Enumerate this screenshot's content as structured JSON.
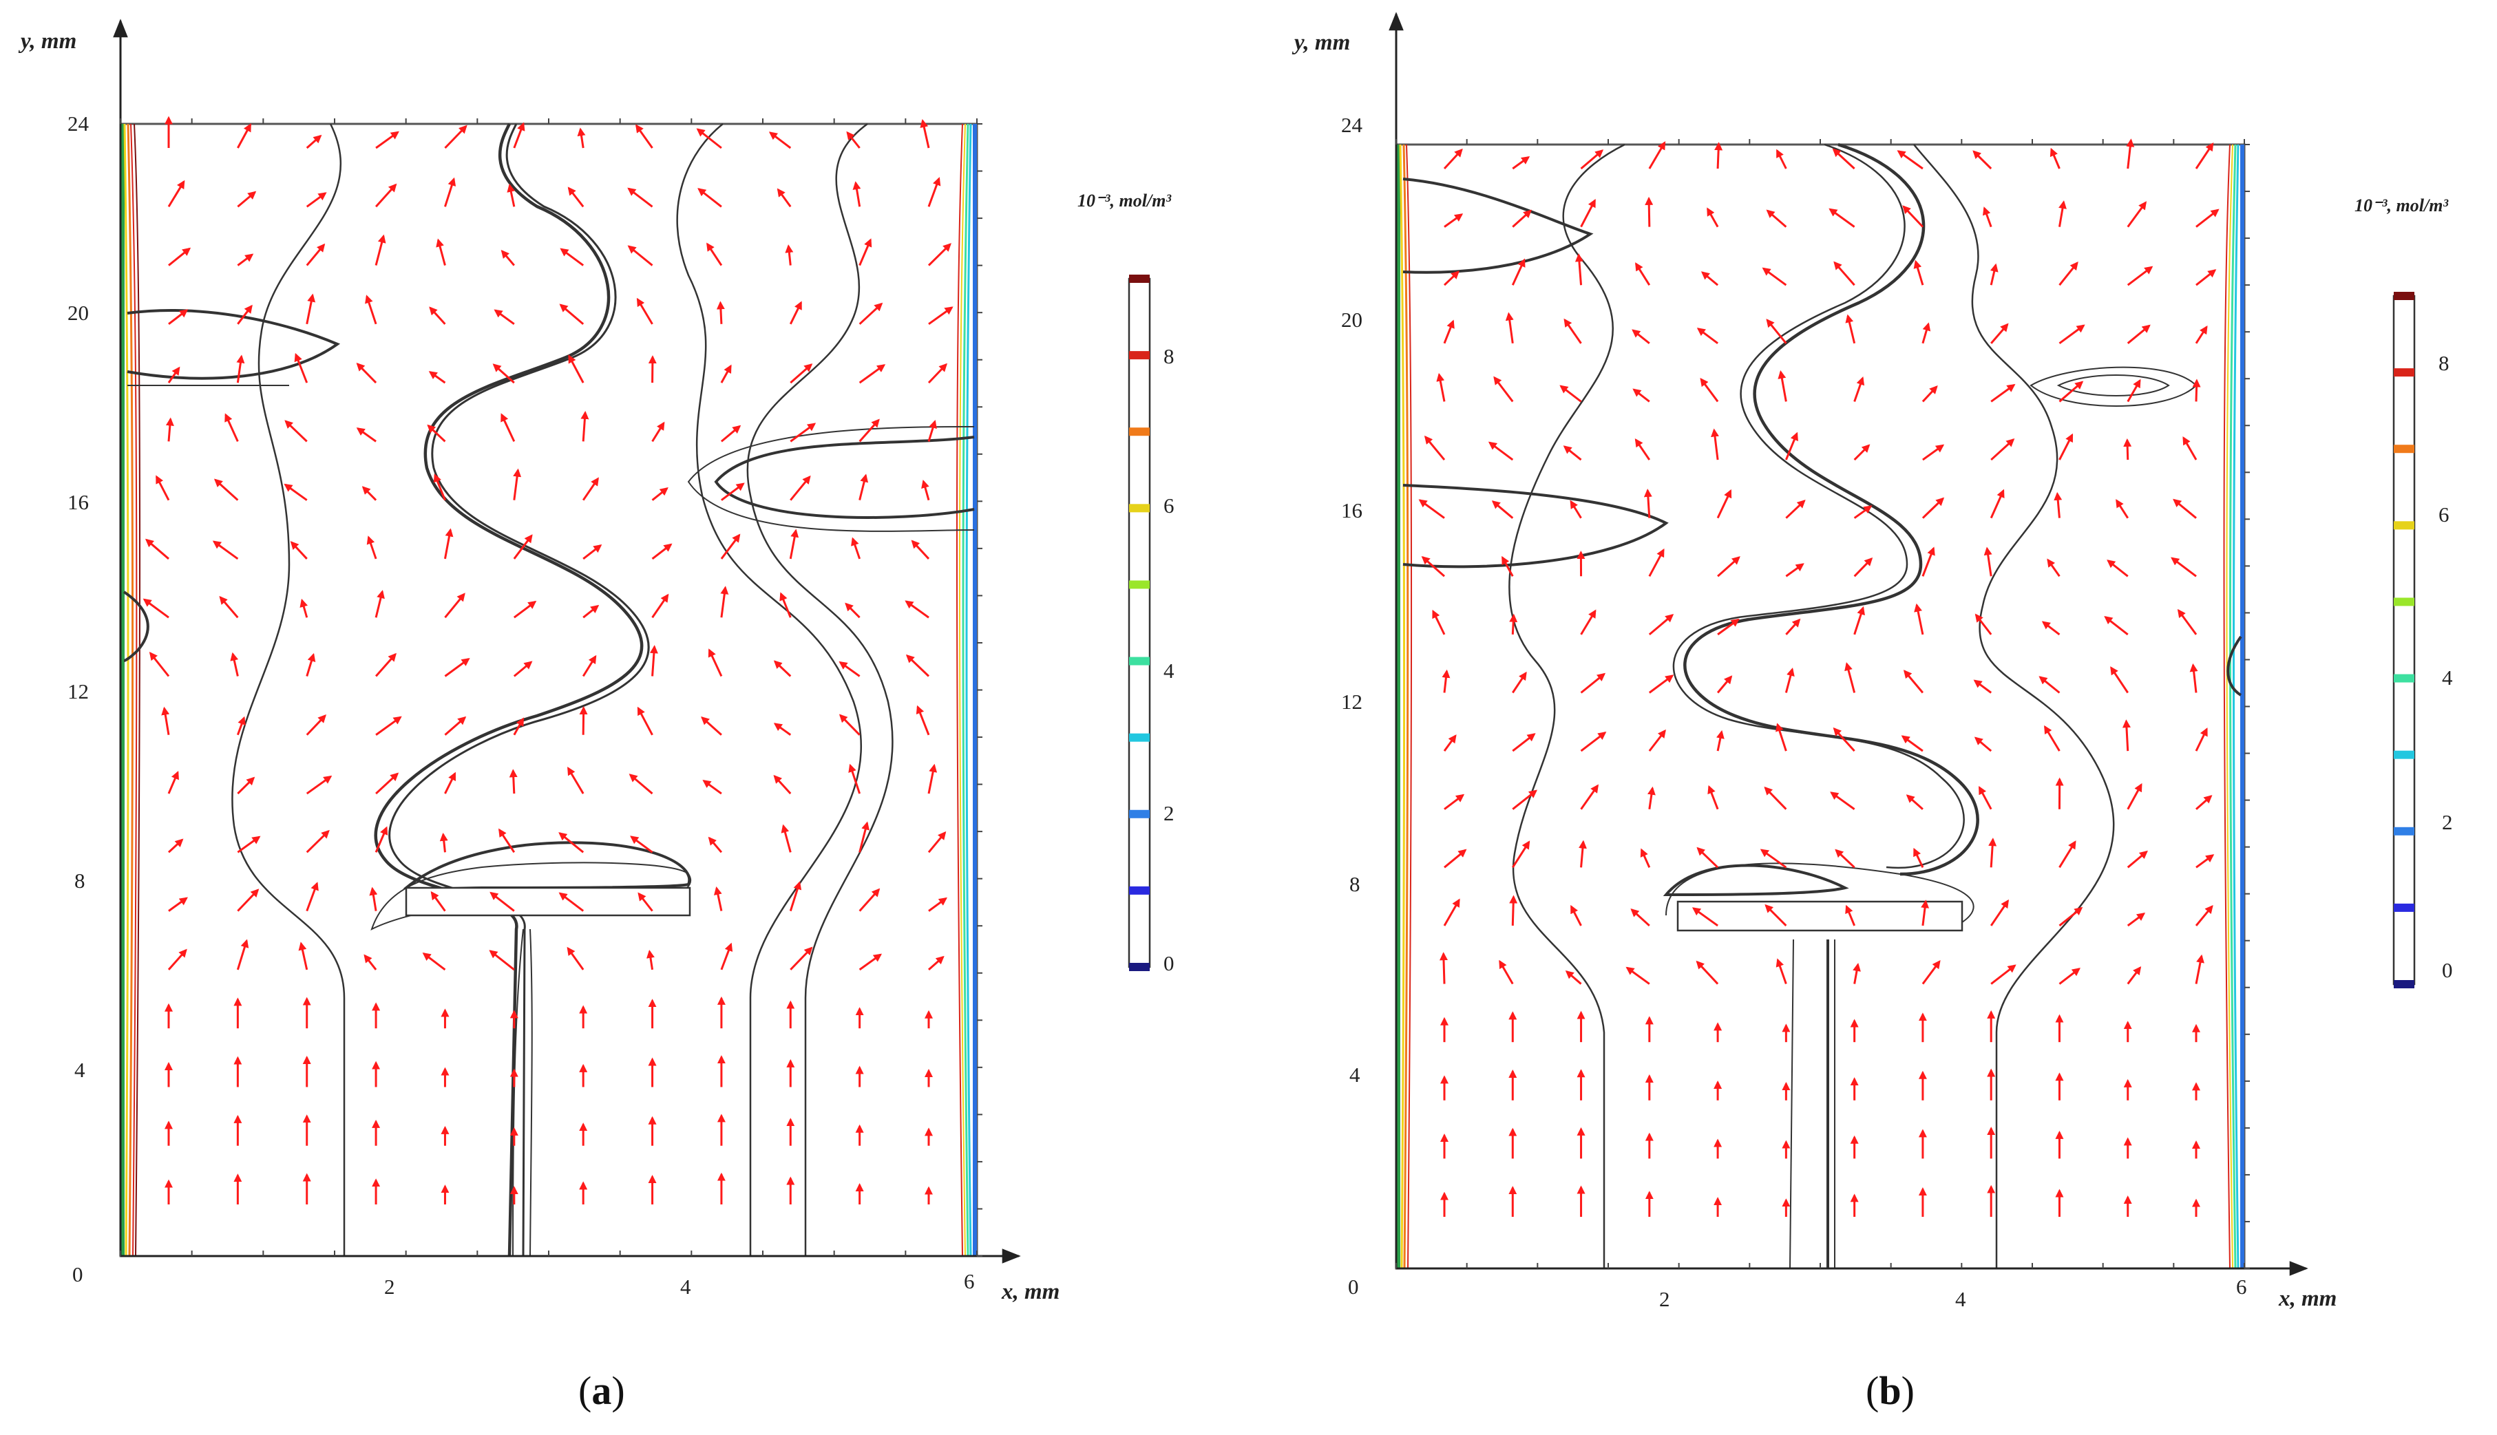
{
  "panels": [
    {
      "id": "a",
      "caption_letter": "a",
      "x_axis_label": "x, mm",
      "y_axis_label": "y, mm",
      "x_ticks": [
        "0",
        "2",
        "4",
        "6"
      ],
      "y_ticks": [
        "24",
        "20",
        "16",
        "12",
        "8",
        "4"
      ],
      "colorbar_unit": "10⁻³, mol/m³",
      "colorbar_ticks": [
        "8",
        "6",
        "4",
        "2",
        "0"
      ]
    },
    {
      "id": "b",
      "caption_letter": "b",
      "x_axis_label": "x, mm",
      "y_axis_label": "y, mm",
      "x_ticks": [
        "0",
        "2",
        "4",
        "6"
      ],
      "y_ticks": [
        "24",
        "20",
        "16",
        "12",
        "8",
        "4"
      ],
      "colorbar_unit": "10⁻³, mol/m³",
      "colorbar_ticks": [
        "8",
        "6",
        "4",
        "2",
        "0"
      ]
    }
  ],
  "colors": {
    "vector_arrow": "#ff1a1a",
    "streamline": "#333333",
    "colorbar_levels": [
      "#1a1a80",
      "#2a2ae0",
      "#2f7fe6",
      "#22c7e0",
      "#3de0a0",
      "#9ae62a",
      "#e6d21a",
      "#f07a1a",
      "#d9241a",
      "#7a0f0f"
    ]
  }
}
